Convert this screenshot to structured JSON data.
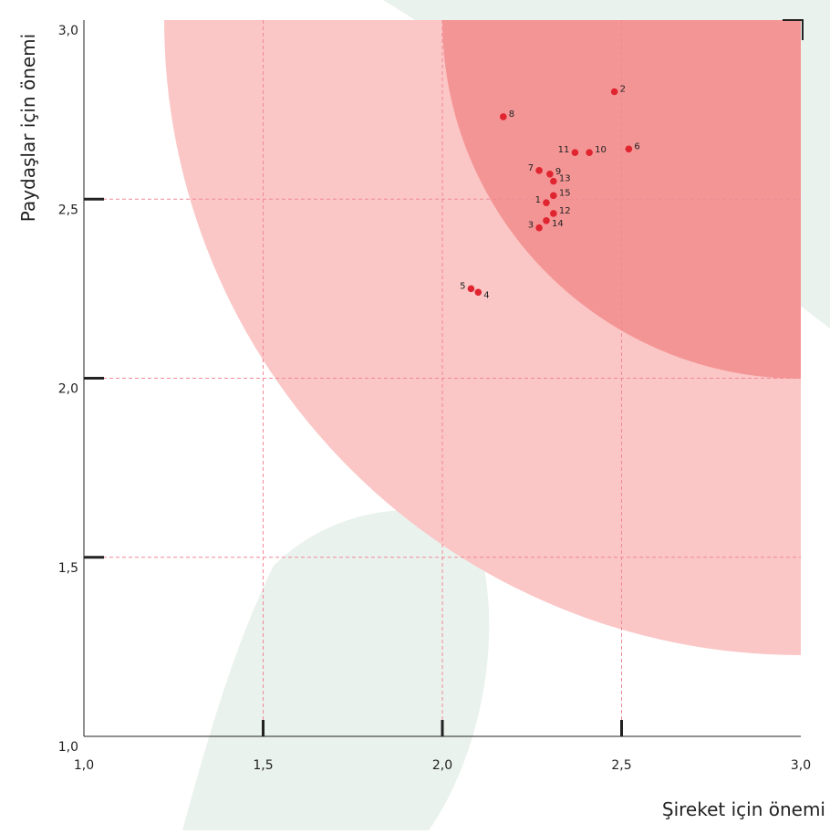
{
  "chart_data": {
    "type": "scatter",
    "x_label": "Şireket için önemi",
    "y_label": "Paydaşlar için önemi",
    "labels": [
      "1",
      "2",
      "3",
      "4",
      "5",
      "6",
      "7",
      "8",
      "9",
      "10",
      "11",
      "12",
      "13",
      "14",
      "15"
    ],
    "x": [
      2.29,
      2.48,
      2.27,
      2.1,
      2.08,
      2.52,
      2.27,
      2.17,
      2.3,
      2.41,
      2.37,
      2.31,
      2.31,
      2.29,
      2.31
    ],
    "y": [
      2.49,
      2.8,
      2.42,
      2.24,
      2.25,
      2.64,
      2.58,
      2.73,
      2.57,
      2.63,
      2.63,
      2.46,
      2.55,
      2.44,
      2.51
    ],
    "color": "#e02530",
    "xlim": [
      1.0,
      3.0
    ],
    "ylim": [
      1.0,
      3.0
    ],
    "xticks": [
      {
        "value": 1.0,
        "label": "1,0"
      },
      {
        "value": 1.5,
        "label": "1,5"
      },
      {
        "value": 2.0,
        "label": "2,0"
      },
      {
        "value": 2.5,
        "label": "2,5"
      },
      {
        "value": 3.0,
        "label": "3,0"
      }
    ],
    "yticks": [
      {
        "value": 1.0,
        "label": "1,0"
      },
      {
        "value": 1.5,
        "label": "1,5"
      },
      {
        "value": 2.0,
        "label": "2,0"
      },
      {
        "value": 2.5,
        "label": "2,5"
      },
      {
        "value": 3.0,
        "label": "3,0"
      }
    ],
    "grid": true
  }
}
